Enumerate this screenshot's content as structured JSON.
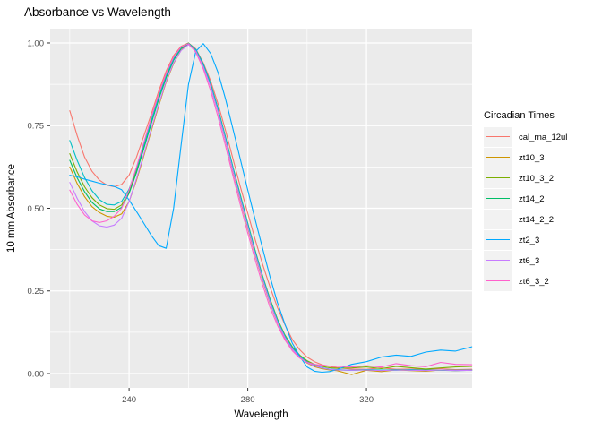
{
  "chart_data": {
    "type": "line",
    "title": "Absorbance vs Wavelength",
    "xlabel": "Wavelength",
    "ylabel": "10 mm Absorbance",
    "legend_title": "Circadian Times",
    "legend_position": "right",
    "colors": {
      "panel_background": "#EBEBEB",
      "grid": "#FFFFFF",
      "tick_text": "#4D4D4D",
      "tick_mark": "#333333",
      "text": "#000000",
      "legend_key_background": "#F2F2F2"
    },
    "x_range": [
      213.4,
      355.6
    ],
    "y_range": [
      -0.0433,
      1.0433
    ],
    "x_major_ticks": [
      240,
      280,
      320
    ],
    "x_tick_labels": [
      "240",
      "280",
      "320"
    ],
    "x_minor_ticks": [
      220,
      260,
      300,
      340
    ],
    "y_major_ticks": [
      0,
      0.25,
      0.5,
      0.75,
      1.0
    ],
    "y_tick_labels": [
      "0.00",
      "0.25",
      "0.50",
      "0.75",
      "1.00"
    ],
    "y_minor_ticks": [
      0.125,
      0.375,
      0.625,
      0.875
    ],
    "x": [
      220,
      222.5,
      225,
      227.5,
      230,
      232.5,
      235,
      237.5,
      240,
      242.5,
      245,
      247.5,
      250,
      252.5,
      255,
      257.5,
      260,
      262.5,
      265,
      267.5,
      270,
      272.5,
      275,
      277.5,
      280,
      282.5,
      285,
      287.5,
      290,
      292.5,
      295,
      297.5,
      300,
      302.5,
      305,
      307.5,
      310,
      315,
      320,
      325,
      330,
      335,
      340,
      345,
      350,
      355.5
    ],
    "series": [
      {
        "name": "cal_rna_12ul",
        "color": "#F8766D",
        "values": [
          0.795,
          0.72,
          0.655,
          0.612,
          0.585,
          0.57,
          0.565,
          0.572,
          0.6,
          0.655,
          0.72,
          0.785,
          0.855,
          0.915,
          0.962,
          0.99,
          1.0,
          0.982,
          0.94,
          0.885,
          0.815,
          0.735,
          0.65,
          0.565,
          0.485,
          0.405,
          0.33,
          0.262,
          0.2,
          0.148,
          0.103,
          0.072,
          0.05,
          0.036,
          0.027,
          0.022,
          0.018,
          0.014,
          0.013,
          0.017,
          0.013,
          0.014,
          0.013,
          0.015,
          0.012,
          0.013
        ]
      },
      {
        "name": "zt10_3",
        "color": "#CD9600",
        "values": [
          0.625,
          0.575,
          0.535,
          0.505,
          0.487,
          0.476,
          0.473,
          0.483,
          0.52,
          0.585,
          0.66,
          0.735,
          0.81,
          0.882,
          0.938,
          0.978,
          0.998,
          0.975,
          0.93,
          0.868,
          0.79,
          0.703,
          0.612,
          0.525,
          0.44,
          0.358,
          0.282,
          0.213,
          0.155,
          0.108,
          0.074,
          0.05,
          0.032,
          0.021,
          0.015,
          0.011,
          0.009,
          -0.003,
          0.01,
          0.006,
          0.011,
          0.009,
          0.007,
          0.011,
          0.009,
          0.011
        ]
      },
      {
        "name": "zt10_3_2",
        "color": "#7CAE00",
        "values": [
          0.665,
          0.61,
          0.565,
          0.532,
          0.51,
          0.499,
          0.497,
          0.51,
          0.55,
          0.615,
          0.69,
          0.763,
          0.835,
          0.9,
          0.952,
          0.986,
          1.0,
          0.98,
          0.936,
          0.875,
          0.8,
          0.715,
          0.625,
          0.54,
          0.455,
          0.372,
          0.295,
          0.226,
          0.165,
          0.117,
          0.081,
          0.056,
          0.039,
          0.028,
          0.022,
          0.018,
          0.016,
          0.017,
          0.02,
          0.015,
          0.022,
          0.018,
          0.014,
          0.017,
          0.02,
          0.022
        ]
      },
      {
        "name": "zt14_2",
        "color": "#00BE67",
        "values": [
          0.645,
          0.592,
          0.55,
          0.518,
          0.498,
          0.49,
          0.49,
          0.503,
          0.545,
          0.608,
          0.682,
          0.757,
          0.83,
          0.895,
          0.948,
          0.983,
          0.997,
          0.978,
          0.933,
          0.872,
          0.796,
          0.71,
          0.62,
          0.535,
          0.45,
          0.368,
          0.291,
          0.221,
          0.16,
          0.113,
          0.077,
          0.052,
          0.035,
          0.024,
          0.017,
          0.013,
          0.011,
          0.01,
          0.011,
          0.01,
          0.012,
          0.01,
          0.011,
          0.01,
          0.009,
          0.01
        ]
      },
      {
        "name": "zt14_2_2",
        "color": "#00BFC4",
        "values": [
          0.705,
          0.645,
          0.593,
          0.553,
          0.526,
          0.512,
          0.51,
          0.521,
          0.558,
          0.62,
          0.692,
          0.765,
          0.838,
          0.902,
          0.952,
          0.986,
          0.999,
          0.98,
          0.937,
          0.877,
          0.8,
          0.714,
          0.624,
          0.538,
          0.453,
          0.37,
          0.293,
          0.223,
          0.162,
          0.114,
          0.078,
          0.053,
          0.036,
          0.025,
          0.018,
          0.014,
          0.012,
          0.01,
          0.012,
          0.011,
          0.01,
          0.012,
          0.01,
          0.011,
          0.01,
          0.011
        ]
      },
      {
        "name": "zt2_3",
        "color": "#00A9FF",
        "values": [
          0.6,
          0.595,
          0.588,
          0.582,
          0.576,
          0.571,
          0.566,
          0.556,
          0.525,
          0.49,
          0.454,
          0.418,
          0.387,
          0.379,
          0.5,
          0.69,
          0.875,
          0.975,
          0.998,
          0.968,
          0.91,
          0.83,
          0.74,
          0.648,
          0.555,
          0.465,
          0.378,
          0.293,
          0.215,
          0.15,
          0.092,
          0.052,
          0.02,
          0.007,
          0.004,
          0.006,
          0.012,
          0.028,
          0.036,
          0.05,
          0.056,
          0.052,
          0.065,
          0.071,
          0.068,
          0.081
        ]
      },
      {
        "name": "zt6_3",
        "color": "#C77CFF",
        "values": [
          0.578,
          0.53,
          0.49,
          0.462,
          0.447,
          0.443,
          0.449,
          0.47,
          0.52,
          0.59,
          0.665,
          0.74,
          0.815,
          0.885,
          0.94,
          0.977,
          0.995,
          0.975,
          0.929,
          0.867,
          0.79,
          0.704,
          0.614,
          0.528,
          0.444,
          0.361,
          0.285,
          0.215,
          0.156,
          0.109,
          0.074,
          0.049,
          0.033,
          0.023,
          0.017,
          0.013,
          0.011,
          0.01,
          0.011,
          0.009,
          0.011,
          0.01,
          0.009,
          0.011,
          0.009,
          0.01
        ]
      },
      {
        "name": "zt6_3_2",
        "color": "#FF61CC",
        "values": [
          0.555,
          0.512,
          0.48,
          0.462,
          0.457,
          0.462,
          0.476,
          0.5,
          0.555,
          0.625,
          0.7,
          0.775,
          0.845,
          0.908,
          0.957,
          0.988,
          0.998,
          0.972,
          0.922,
          0.855,
          0.775,
          0.688,
          0.598,
          0.51,
          0.425,
          0.344,
          0.268,
          0.2,
          0.146,
          0.102,
          0.069,
          0.047,
          0.034,
          0.028,
          0.025,
          0.023,
          0.022,
          0.02,
          0.024,
          0.02,
          0.03,
          0.024,
          0.021,
          0.034,
          0.028,
          0.027
        ]
      }
    ]
  }
}
